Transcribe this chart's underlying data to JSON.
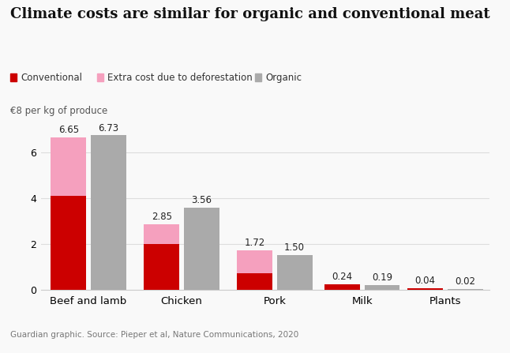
{
  "title": "Climate costs are similar for organic and conventional meat",
  "ylabel": "€8 per kg of produce",
  "footnote": "Guardian graphic. Source: Pieper et al, Nature Communications, 2020",
  "categories": [
    "Beef and lamb",
    "Chicken",
    "Pork",
    "Milk",
    "Plants"
  ],
  "conventional": [
    4.1,
    2.0,
    0.7,
    0.24,
    0.04
  ],
  "extra_deforestation": [
    2.55,
    0.85,
    1.02,
    0.0,
    0.0
  ],
  "organic": [
    6.73,
    3.56,
    1.5,
    0.19,
    0.02
  ],
  "conv_total_labels": [
    "6.65",
    "2.85",
    "1.72",
    "0.24",
    "0.04"
  ],
  "organic_labels": [
    "6.73",
    "3.56",
    "1.50",
    "0.19",
    "0.02"
  ],
  "color_conventional": "#cc0000",
  "color_extra": "#f5a0be",
  "color_organic": "#aaaaaa",
  "color_background": "#f9f9f9",
  "bar_width": 0.32,
  "ylim": [
    0,
    7.4
  ],
  "yticks": [
    0,
    2,
    4,
    6
  ],
  "legend_labels": [
    "Conventional",
    "Extra cost due to deforestation",
    "Organic"
  ]
}
